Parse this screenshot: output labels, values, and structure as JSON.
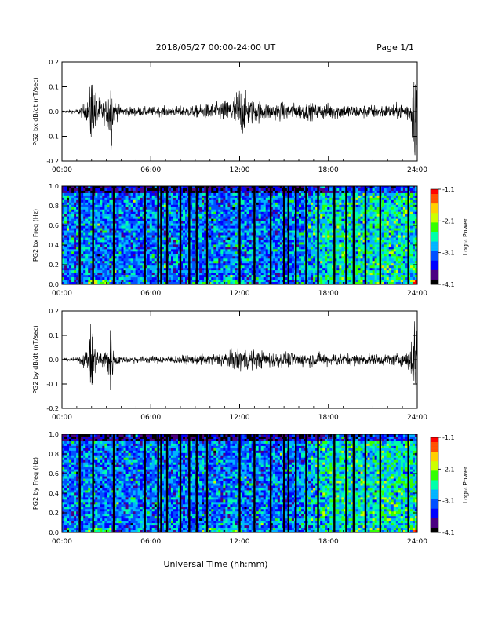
{
  "header": {
    "title": "2018/05/27  00:00-24:00 UT",
    "page": "Page 1/1"
  },
  "footer": {
    "xlabel": "Universal Time (hh:mm)"
  },
  "colorbar": {
    "ticks": [
      "-1.1",
      "-2.1",
      "-3.1",
      "-4.1"
    ],
    "label": "Log₁₀ Power"
  },
  "colors": {
    "colormap": [
      "#000000",
      "#4b0082",
      "#0000ff",
      "#0050ff",
      "#00b4ff",
      "#00ffaa",
      "#33ff00",
      "#ccff00",
      "#ffd000",
      "#ff5000",
      "#ff0000"
    ]
  },
  "chart_data": [
    {
      "type": "line",
      "ylabel": "PG2 bx dB/dt (nT/sec)",
      "xlim": [
        0,
        24
      ],
      "ylim": [
        -0.2,
        0.2
      ],
      "xticks": [
        "00:00",
        "06:00",
        "12:00",
        "18:00",
        "24:00"
      ],
      "yticks": [
        "0.2",
        "0.1",
        "0.0",
        "-0.1",
        "-0.2"
      ],
      "envelope_hours": [
        0,
        1,
        1.8,
        2.0,
        2.2,
        2.5,
        3.0,
        3.3,
        3.5,
        4,
        6,
        9,
        10.5,
        11.5,
        12,
        12.5,
        13,
        14,
        16,
        18,
        20,
        22,
        23,
        23.5,
        23.8,
        24
      ],
      "envelope_amplitude": [
        0.005,
        0.01,
        0.05,
        0.2,
        0.1,
        0.06,
        0.05,
        0.18,
        0.05,
        0.02,
        0.02,
        0.025,
        0.04,
        0.06,
        0.12,
        0.07,
        0.05,
        0.04,
        0.035,
        0.035,
        0.03,
        0.03,
        0.035,
        0.05,
        0.2,
        0.2
      ]
    },
    {
      "type": "heatmap",
      "ylabel": "PG2 bx Freq (Hz)",
      "xlim": [
        0,
        24
      ],
      "ylim": [
        0,
        1
      ],
      "zlim": [
        -4.1,
        -1.1
      ],
      "xticks": [
        "00:00",
        "06:00",
        "12:00",
        "18:00",
        "24:00"
      ],
      "yticks": [
        "1.0",
        "0.8",
        "0.6",
        "0.4",
        "0.2",
        "0.0"
      ],
      "gap_hours": [
        1.2,
        2.1,
        3.5,
        5.6,
        6.5,
        6.7,
        7.1,
        8.0,
        8.6,
        9.1,
        9.8,
        12.0,
        13.0,
        14.1,
        15.0,
        15.3,
        15.8,
        16.5,
        17.3,
        18.4,
        19.2,
        19.7,
        20.5,
        21.5,
        23.4
      ],
      "background_log_power": -3.1,
      "green_region_hours": [
        16,
        24
      ]
    },
    {
      "type": "line",
      "ylabel": "PG2 by dB/dt (nT/sec)",
      "xlim": [
        0,
        24
      ],
      "ylim": [
        -0.2,
        0.2
      ],
      "xticks": [
        "00:00",
        "06:00",
        "12:00",
        "18:00",
        "24:00"
      ],
      "yticks": [
        "0.2",
        "0.1",
        "0.0",
        "-0.1",
        "-0.2"
      ],
      "envelope_hours": [
        0,
        1,
        1.8,
        2.0,
        2.2,
        2.5,
        3.0,
        3.3,
        3.5,
        4,
        6,
        9,
        10.5,
        11.5,
        12,
        12.5,
        13,
        14,
        16,
        18,
        20,
        22,
        23,
        23.5,
        23.8,
        24
      ],
      "envelope_amplitude": [
        0.005,
        0.01,
        0.05,
        0.2,
        0.07,
        0.04,
        0.05,
        0.14,
        0.04,
        0.015,
        0.015,
        0.02,
        0.03,
        0.04,
        0.06,
        0.05,
        0.04,
        0.035,
        0.03,
        0.03,
        0.025,
        0.025,
        0.03,
        0.05,
        0.2,
        0.2
      ]
    },
    {
      "type": "heatmap",
      "ylabel": "PG2 by Freq (Hz)",
      "xlim": [
        0,
        24
      ],
      "ylim": [
        0,
        1
      ],
      "zlim": [
        -4.1,
        -1.1
      ],
      "xticks": [
        "00:00",
        "06:00",
        "12:00",
        "18:00",
        "24:00"
      ],
      "yticks": [
        "1.0",
        "0.8",
        "0.6",
        "0.4",
        "0.2",
        "0.0"
      ],
      "gap_hours": [
        1.2,
        2.1,
        3.5,
        5.6,
        6.5,
        6.7,
        7.1,
        8.0,
        8.6,
        9.1,
        9.8,
        12.0,
        13.0,
        14.1,
        15.0,
        15.3,
        15.8,
        16.5,
        17.3,
        18.4,
        19.2,
        19.7,
        20.5,
        21.5,
        23.4
      ],
      "background_log_power": -3.1,
      "green_region_hours": [
        16,
        24
      ]
    }
  ]
}
